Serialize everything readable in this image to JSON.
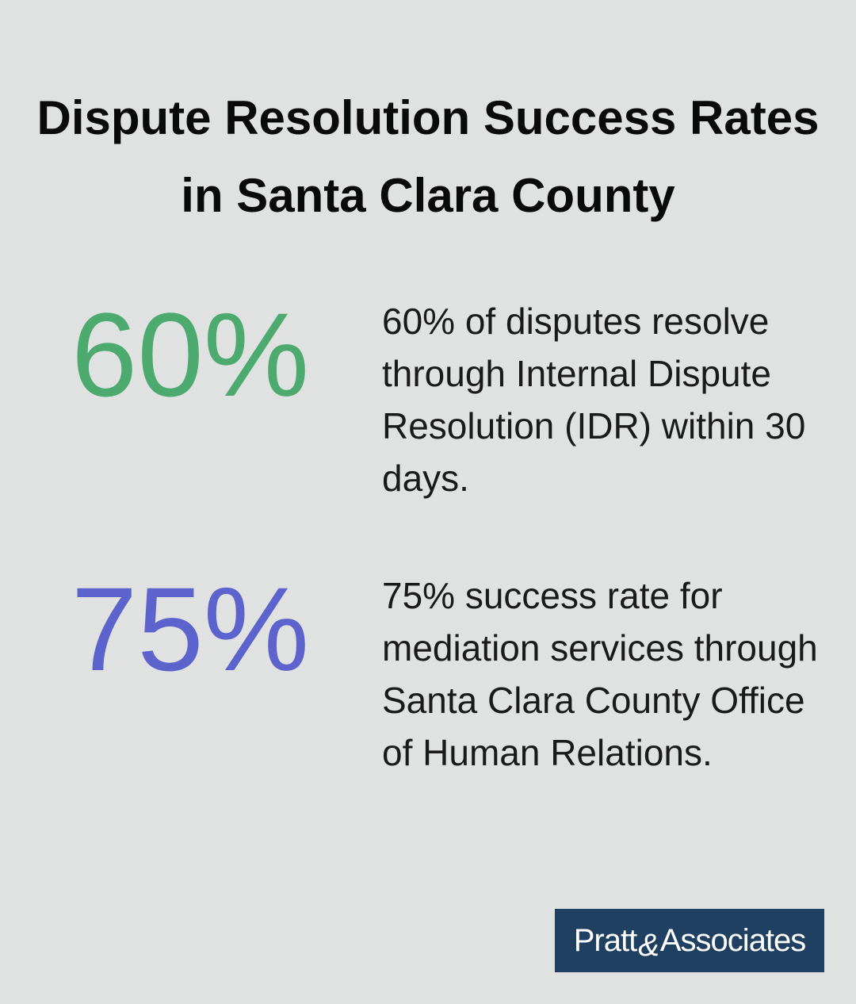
{
  "title": "Dispute Resolution Success Rates in Santa Clara County",
  "stats": [
    {
      "value": "60%",
      "color": "#4caa6e",
      "description": "60% of disputes resolve through Internal Dispute Resolution (IDR) within 30 days."
    },
    {
      "value": "75%",
      "color": "#5c63cc",
      "description": "75% success rate for mediation services through Santa Clara County Office of Human Relations."
    }
  ],
  "logo": {
    "text_left": "Pratt",
    "ampersand": "&",
    "text_right": "Associates",
    "background": "#1f4060"
  }
}
